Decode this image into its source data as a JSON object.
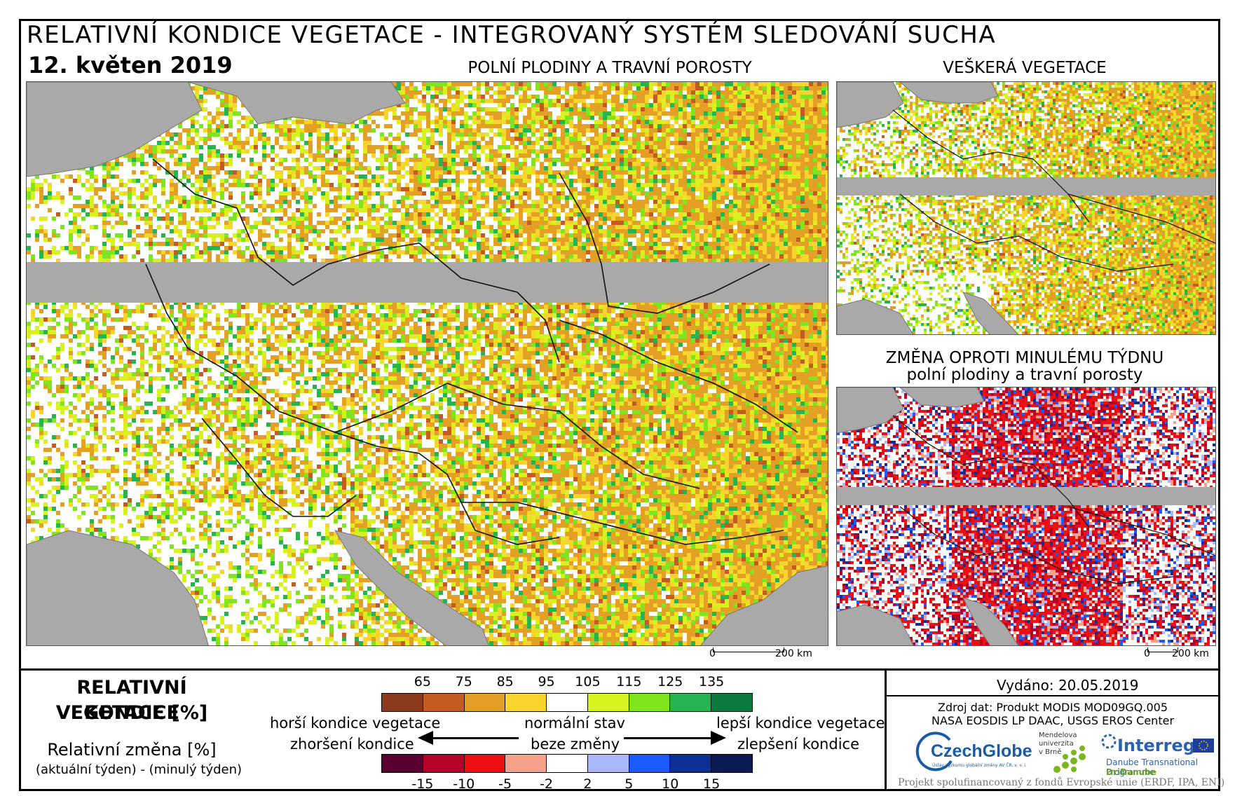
{
  "header": {
    "title": "RELATIVNÍ KONDICE VEGETACE - INTEGROVANÝ SYSTÉM SLEDOVÁNÍ SUCHA",
    "date": "12. květen 2019"
  },
  "panels": {
    "main_label": "POLNÍ PLODINY A TRAVNÍ POROSTY",
    "all_veg_label": "VEŠKERÁ VEGETACE",
    "change_label_1": "ZMĚNA OPROTI MINULÉMU TÝDNU",
    "change_label_2": "polní plodiny a travní porosty"
  },
  "scale": {
    "zero": "0",
    "distance": "200 km"
  },
  "legend": {
    "title_1": "RELATIVNÍ KONDICE",
    "title_2": "VEGETACE [%]",
    "sub_1": "Relativní změna [%]",
    "sub_2": "(aktuální týden) - (minulý týden)",
    "condition_ticks": [
      "65",
      "75",
      "85",
      "95",
      "105",
      "115",
      "125",
      "135"
    ],
    "condition_colors": [
      "#8b3a1e",
      "#c55a22",
      "#e3a024",
      "#f8d42c",
      "#ffffff",
      "#d7f21e",
      "#7ee51e",
      "#24b550",
      "#0b7a3e"
    ],
    "change_ticks": [
      "-15",
      "-10",
      "-5",
      "-2",
      "2",
      "5",
      "10",
      "15"
    ],
    "change_colors": [
      "#5a0030",
      "#b5002a",
      "#ee1010",
      "#f7a08a",
      "#ffffff",
      "#a9b8ff",
      "#1a5bff",
      "#0d2f96",
      "#0a1a55"
    ],
    "worse_1": "horší kondice vegetace",
    "worse_2": "zhoršení kondice",
    "normal_1": "normální stav",
    "normal_2": "beze změny",
    "better_1": "lepší kondice vegetace",
    "better_2": "zlepšení kondice"
  },
  "info": {
    "issued": "Vydáno: 20.05.2019",
    "source_1": "Zdroj dat: Produkt MODIS MOD09GQ.005",
    "source_2": "NASA EOSDIS LP DAAC, USGS EROS Center",
    "logo_czechglobe": "CzechGlobe",
    "logo_czechglobe_sub": "Ústav výzkumu globální změny AV ČR, v. v. i.",
    "logo_mendel_1": "Mendelova",
    "logo_mendel_2": "univerzita",
    "logo_mendel_3": "v Brně",
    "logo_interreg": "Interreg",
    "logo_interreg_sub": "Danube Transnational Programme",
    "logo_dridanube": "DriDanube",
    "footer": "Projekt spolufinancovaný z fondů Evropské unie (ERDF, IPA, ENI)"
  }
}
